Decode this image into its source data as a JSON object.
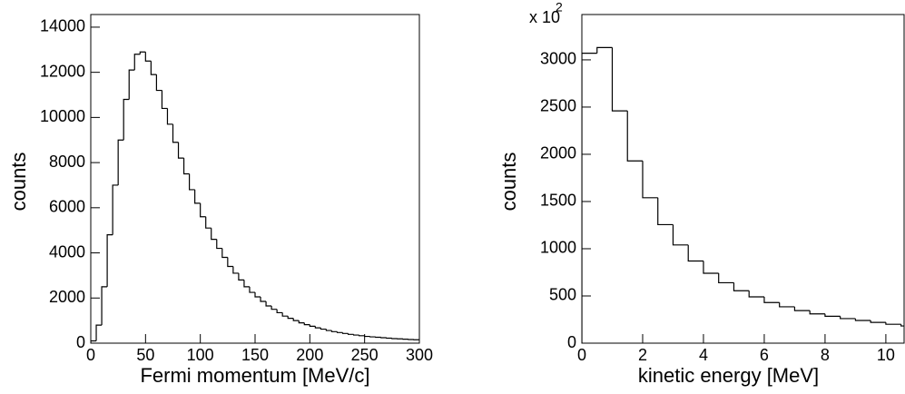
{
  "chart_data": [
    {
      "type": "histogram",
      "xlabel": "Fermi momentum [MeV/c]",
      "ylabel": "counts",
      "color": "#000000",
      "bins": [
        0,
        5,
        10,
        15,
        20,
        25,
        30,
        35,
        40,
        45,
        50,
        55,
        60,
        65,
        70,
        75,
        80,
        85,
        90,
        95,
        100,
        105,
        110,
        115,
        120,
        125,
        130,
        135,
        140,
        145,
        150,
        155,
        160,
        165,
        170,
        175,
        180,
        185,
        190,
        195,
        200,
        205,
        210,
        215,
        220,
        225,
        230,
        235,
        240,
        245,
        250,
        255,
        260,
        265,
        270,
        275,
        280,
        285,
        290,
        295,
        300
      ],
      "values": [
        100,
        800,
        2500,
        4800,
        7000,
        9000,
        10800,
        12100,
        12800,
        12900,
        12500,
        11900,
        11200,
        10400,
        9700,
        8900,
        8200,
        7500,
        6800,
        6200,
        5600,
        5100,
        4600,
        4200,
        3800,
        3400,
        3100,
        2800,
        2500,
        2250,
        2050,
        1850,
        1650,
        1500,
        1350,
        1200,
        1100,
        1000,
        900,
        820,
        750,
        680,
        620,
        560,
        510,
        470,
        430,
        390,
        360,
        330,
        300,
        280,
        260,
        240,
        220,
        200,
        190,
        175,
        160,
        150
      ],
      "xlim": [
        0,
        300
      ],
      "xticks": [
        0,
        50,
        100,
        150,
        200,
        250,
        300
      ],
      "ylim": [
        0,
        14560
      ],
      "yticks": [
        0,
        2000,
        4000,
        6000,
        8000,
        10000,
        12000,
        14000
      ]
    },
    {
      "type": "histogram",
      "xlabel": "kinetic energy [MeV]",
      "ylabel": "counts",
      "color": "#000000",
      "y_multiplier": "x 10",
      "y_multiplier_exponent": "2",
      "bins": [
        0,
        0.5,
        1,
        1.5,
        2,
        2.5,
        3,
        3.5,
        4,
        4.5,
        5,
        5.5,
        6,
        6.5,
        7,
        7.5,
        8,
        8.5,
        9,
        9.5,
        10,
        10.5,
        11
      ],
      "values": [
        3070,
        3130,
        2460,
        1930,
        1540,
        1255,
        1040,
        870,
        740,
        640,
        555,
        490,
        430,
        385,
        345,
        310,
        285,
        260,
        240,
        220,
        200,
        182
      ],
      "xlim": [
        0,
        10.6
      ],
      "xticks": [
        0,
        2,
        4,
        6,
        8,
        10
      ],
      "ylim": [
        0,
        3480
      ],
      "yticks": [
        0,
        500,
        1000,
        1500,
        2000,
        2500,
        3000
      ]
    }
  ]
}
